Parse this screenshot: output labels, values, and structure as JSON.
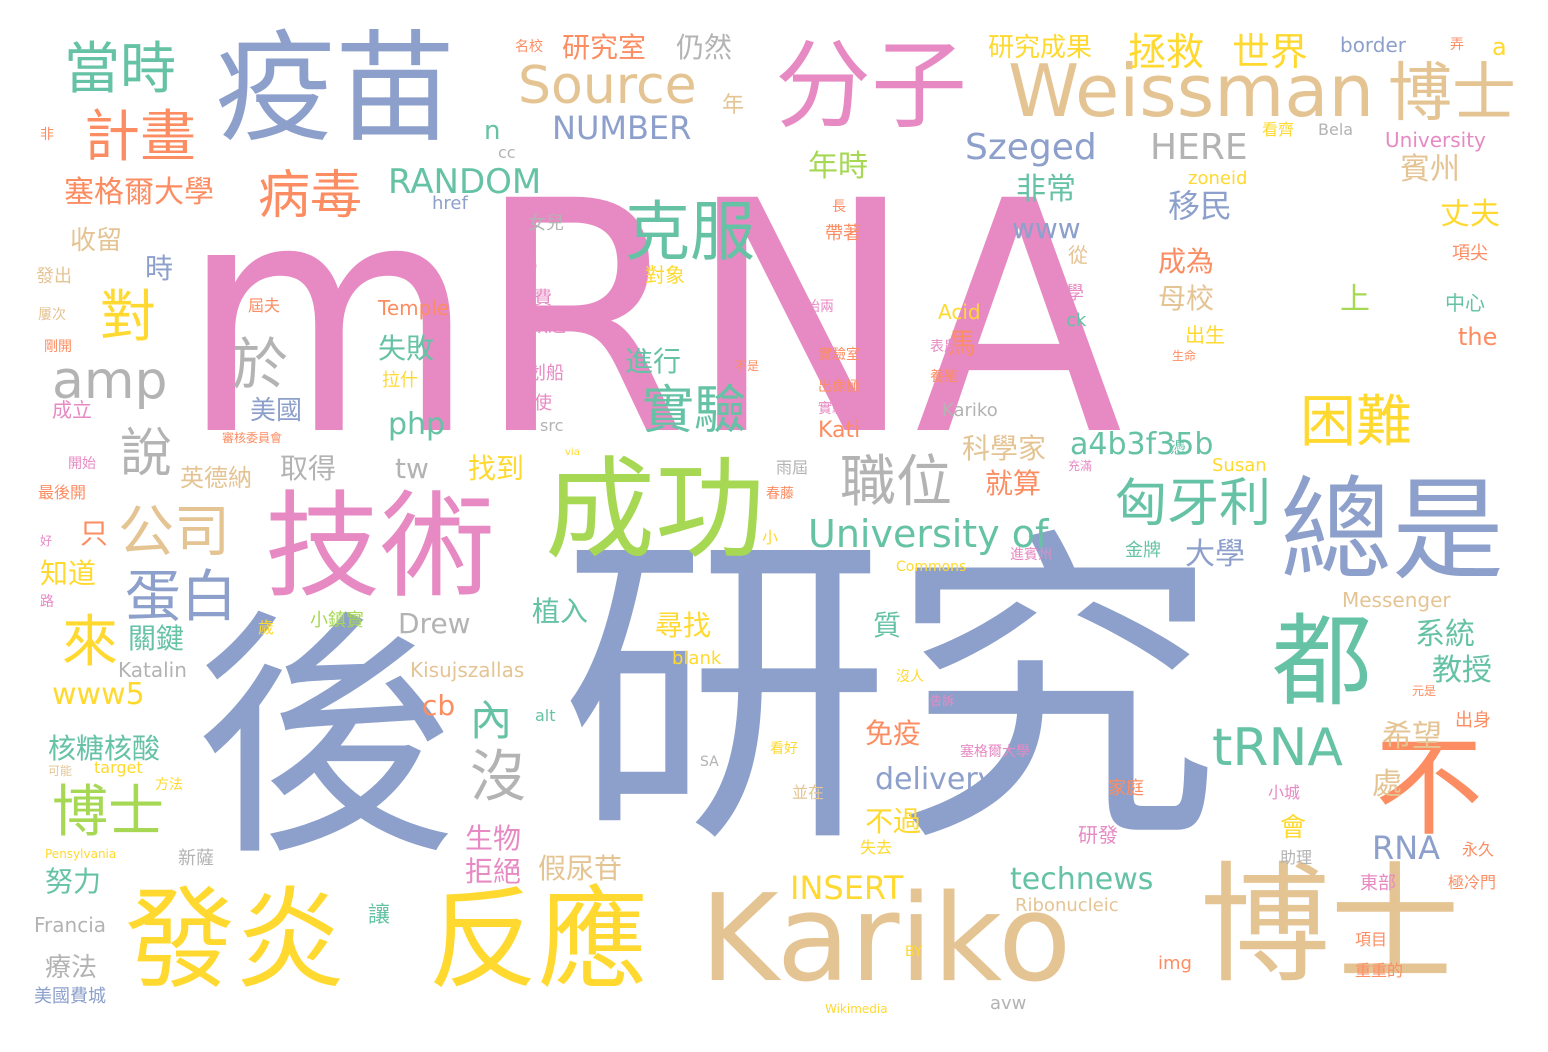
{
  "palette": {
    "pink": "#e78ac3",
    "blue": "#8da0cb",
    "tan": "#e5c494",
    "yellow": "#ffd92f",
    "green": "#66c2a5",
    "orange": "#fc8d62",
    "lime": "#a6d854",
    "gray": "#b3b3b3"
  },
  "words": [
    "mRNA",
    "研究",
    "後",
    "技術",
    "成功",
    "Kariko",
    "博士",
    "發炎",
    "反應",
    "疫苗",
    "分子",
    "Weissman",
    "總是",
    "都",
    "克服",
    "不",
    "當時",
    "計畫",
    "病毒",
    "Source",
    "amp",
    "於",
    "說",
    "公司",
    "蛋白",
    "對",
    "來",
    "博士",
    "職位",
    "實驗",
    "困難",
    "匈牙利",
    "tRNA",
    "University of",
    "沒",
    "內",
    "拯救",
    "世界",
    "博士",
    "Szeged",
    "RANDOM",
    "NUMBER",
    "HERE",
    "塞格爾大學",
    "研究室",
    "仍然",
    "研究成果",
    "border",
    "a",
    "年時",
    "非常",
    "移民",
    "賓州",
    "丈夫",
    "www",
    "成為",
    "母校",
    "上",
    "收留",
    "時",
    "進行",
    "失敗",
    "馬",
    "美國",
    "php",
    "tw",
    "取得",
    "科學家",
    "就算",
    "a4b3f35b",
    "大學",
    "系統",
    "教授",
    "希望",
    "處",
    "RNA",
    "會",
    "www5",
    "cb",
    "核糖核酸",
    "免疫",
    "delivery",
    "不過",
    "生物",
    "拒絕",
    "假尿苷",
    "technews",
    "INSERT",
    "努力",
    "療法",
    "知道",
    "只",
    "植入",
    "尋找",
    "質",
    "關鍵",
    "Drew",
    "找到",
    "英德納",
    "Kati",
    "Kariko",
    "Acid",
    "Temple",
    "the",
    "中心",
    "出生",
    "University",
    "看齊",
    "Bela",
    "zoneid",
    "href",
    "cc",
    "女兒",
    "長",
    "帶著",
    "從",
    "項尖",
    "學",
    "經費",
    "缺乏",
    "信使",
    "src",
    "划船",
    "Susan",
    "金牌",
    "小鎮實",
    "Messenger",
    "Commons",
    "Katalin",
    "blank",
    "Kisujszallas",
    "alt",
    "target",
    "Pensylvania",
    "新薩",
    "Francia",
    "讓",
    "Ribonucleic",
    "BY",
    "img",
    "Wikimedia",
    "avw",
    "美國費城",
    "重重的",
    "項目",
    "東部",
    "極冷門",
    "永久",
    "助理",
    "小城",
    "家庭",
    "研發",
    "出身",
    "實驗室",
    "出像極",
    "容易",
    "對象",
    "拉什",
    "發出",
    "屢次",
    "剛開",
    "成立",
    "開始",
    "最後開",
    "好",
    "路",
    "歲",
    "方法",
    "可能",
    "並在",
    "看好",
    "SA",
    "養殖",
    "雨屆",
    "春藤",
    "沒人",
    "告訴",
    "出身",
    "元是",
    "ck",
    "n",
    "年",
    "非",
    "名校",
    "弄",
    "充滿",
    "憑",
    "進賓州",
    "生命",
    "實驗室",
    "塞格爾大學",
    "審核委員會",
    "小",
    "via",
    "不是",
    "始兩",
    "屆夫",
    "表農",
    "Kariko",
    "失去"
  ]
}
